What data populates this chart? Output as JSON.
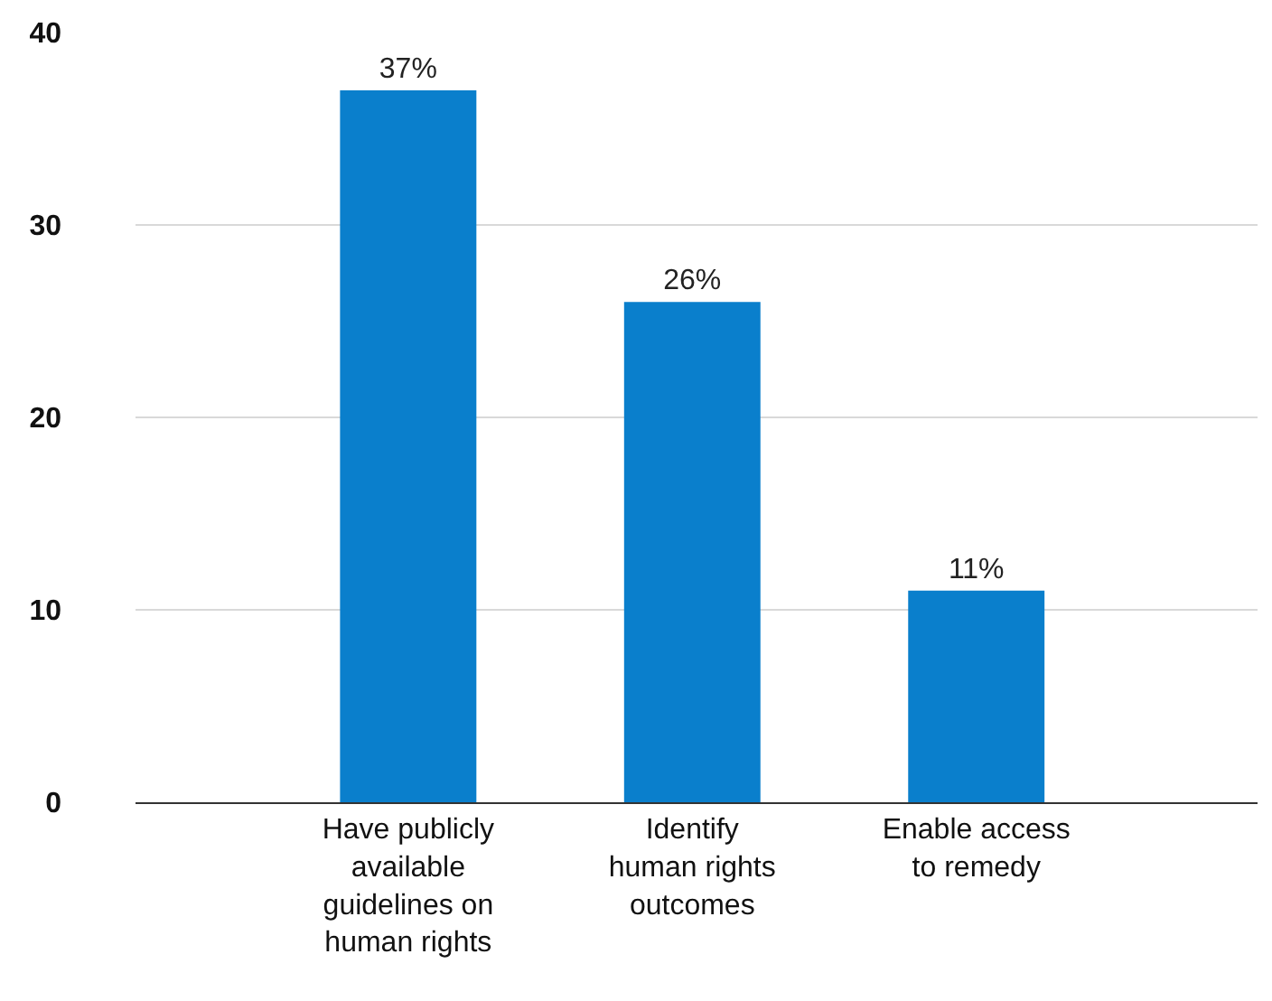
{
  "chart_data": {
    "type": "bar",
    "categories": [
      "Have publicly available guidelines on human rights",
      "Identify human rights outcomes",
      "Enable access to remedy"
    ],
    "values": [
      37,
      26,
      11
    ],
    "value_labels": [
      "37%",
      "26%",
      "11%"
    ],
    "color": "#0a7fcc",
    "ylim": [
      0,
      40
    ],
    "yticks": [
      0,
      10,
      20,
      30,
      40
    ],
    "grid": "y"
  }
}
